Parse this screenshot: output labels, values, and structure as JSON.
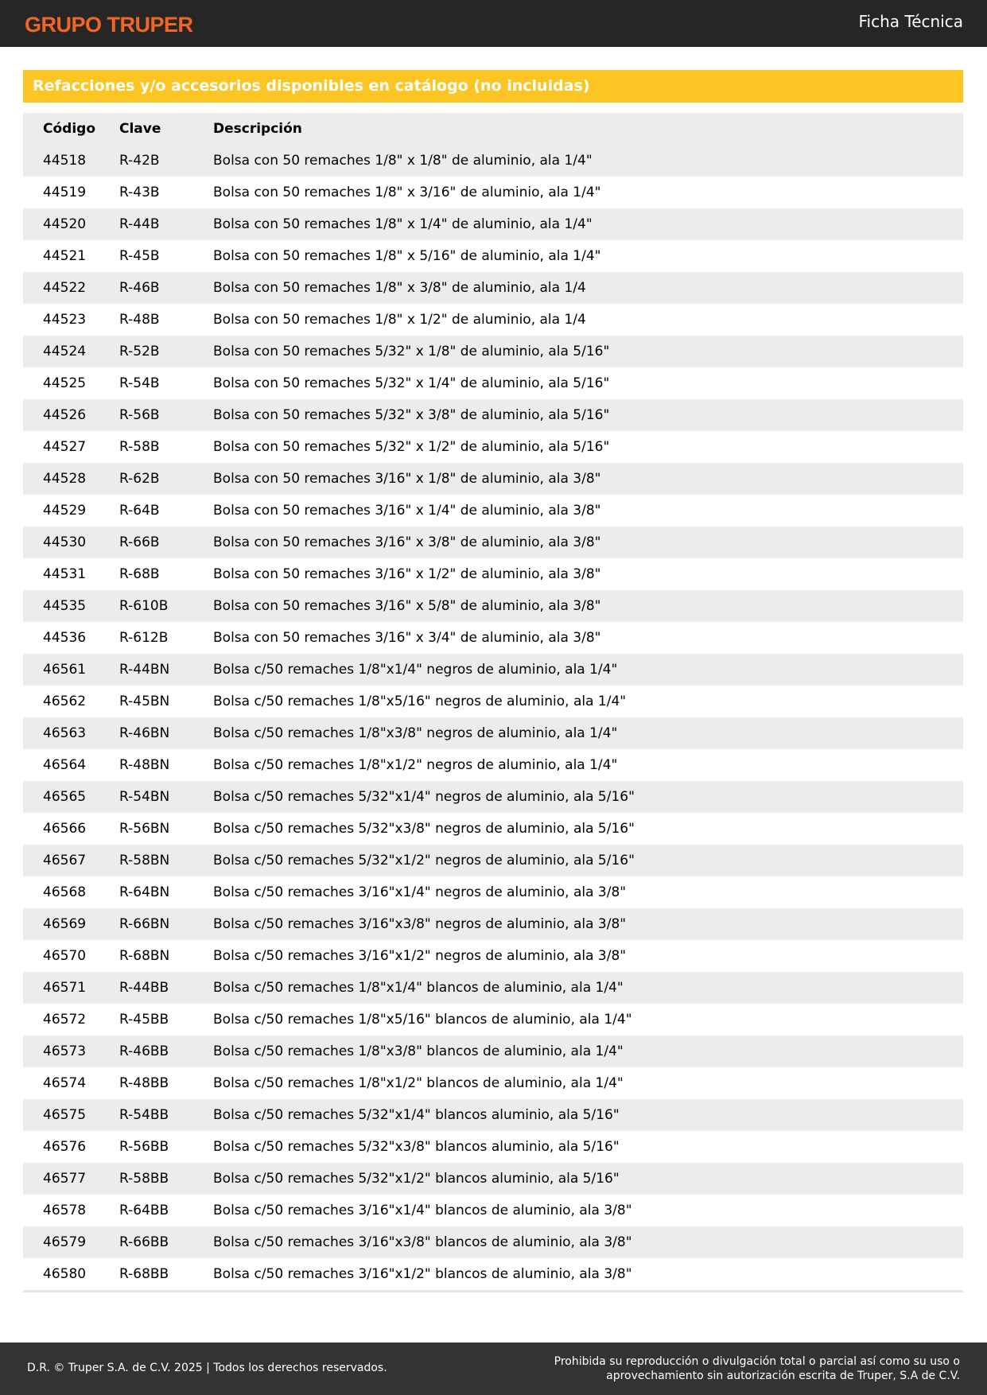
{
  "header": {
    "logo": "GRUPO TRUPER",
    "doc_type": "Ficha Técnica"
  },
  "section_title": "Refacciones y/o accesorios disponibles en catálogo (no incluidas)",
  "table": {
    "columns": [
      "Código",
      "Clave",
      "Descripción"
    ],
    "rows": [
      [
        "44518",
        "R-42B",
        "Bolsa con 50 remaches 1/8\" x 1/8\" de aluminio, ala 1/4\""
      ],
      [
        "44519",
        "R-43B",
        "Bolsa con 50 remaches 1/8\" x 3/16\" de aluminio, ala 1/4\""
      ],
      [
        "44520",
        "R-44B",
        "Bolsa con 50 remaches 1/8\" x 1/4\" de aluminio, ala 1/4\""
      ],
      [
        "44521",
        "R-45B",
        "Bolsa con 50 remaches 1/8\" x 5/16\" de aluminio, ala 1/4\""
      ],
      [
        "44522",
        "R-46B",
        "Bolsa con 50 remaches 1/8\" x 3/8\" de aluminio, ala 1/4"
      ],
      [
        "44523",
        "R-48B",
        "Bolsa con 50 remaches 1/8\" x 1/2\" de aluminio, ala 1/4"
      ],
      [
        "44524",
        "R-52B",
        "Bolsa con 50 remaches 5/32\" x 1/8\" de aluminio, ala 5/16\""
      ],
      [
        "44525",
        "R-54B",
        "Bolsa con 50 remaches 5/32\" x 1/4\" de aluminio, ala 5/16\""
      ],
      [
        "44526",
        "R-56B",
        "Bolsa con 50 remaches 5/32\" x 3/8\" de aluminio, ala 5/16\""
      ],
      [
        "44527",
        "R-58B",
        "Bolsa con 50 remaches 5/32\" x 1/2\" de aluminio, ala 5/16\""
      ],
      [
        "44528",
        "R-62B",
        "Bolsa con 50 remaches 3/16\" x 1/8\" de aluminio, ala 3/8\""
      ],
      [
        "44529",
        "R-64B",
        "Bolsa con 50 remaches 3/16\" x 1/4\" de aluminio, ala 3/8\""
      ],
      [
        "44530",
        "R-66B",
        "Bolsa con 50 remaches 3/16\" x 3/8\" de aluminio, ala 3/8\""
      ],
      [
        "44531",
        "R-68B",
        "Bolsa con 50 remaches 3/16\" x 1/2\" de aluminio, ala 3/8\""
      ],
      [
        "44535",
        "R-610B",
        "Bolsa con 50 remaches 3/16\" x 5/8\" de aluminio, ala 3/8\""
      ],
      [
        "44536",
        "R-612B",
        "Bolsa con 50 remaches 3/16\" x 3/4\" de aluminio, ala 3/8\""
      ],
      [
        "46561",
        "R-44BN",
        "Bolsa c/50 remaches 1/8\"x1/4\" negros de aluminio, ala 1/4\""
      ],
      [
        "46562",
        "R-45BN",
        "Bolsa c/50 remaches 1/8\"x5/16\" negros de aluminio, ala 1/4\""
      ],
      [
        "46563",
        "R-46BN",
        "Bolsa c/50 remaches 1/8\"x3/8\" negros de aluminio, ala 1/4\""
      ],
      [
        "46564",
        "R-48BN",
        "Bolsa c/50 remaches 1/8\"x1/2\" negros de aluminio, ala 1/4\""
      ],
      [
        "46565",
        "R-54BN",
        "Bolsa c/50 remaches 5/32\"x1/4\" negros de aluminio, ala 5/16\""
      ],
      [
        "46566",
        "R-56BN",
        "Bolsa c/50 remaches 5/32\"x3/8\" negros de aluminio, ala 5/16\""
      ],
      [
        "46567",
        "R-58BN",
        "Bolsa c/50 remaches 5/32\"x1/2\" negros de aluminio, ala 5/16\""
      ],
      [
        "46568",
        "R-64BN",
        "Bolsa c/50 remaches 3/16\"x1/4\" negros de aluminio, ala 3/8\""
      ],
      [
        "46569",
        "R-66BN",
        "Bolsa c/50 remaches 3/16\"x3/8\" negros de aluminio, ala 3/8\""
      ],
      [
        "46570",
        "R-68BN",
        "Bolsa c/50 remaches 3/16\"x1/2\" negros de aluminio, ala 3/8\""
      ],
      [
        "46571",
        "R-44BB",
        "Bolsa c/50 remaches 1/8\"x1/4\" blancos de aluminio, ala 1/4\""
      ],
      [
        "46572",
        "R-45BB",
        "Bolsa c/50 remaches 1/8\"x5/16\" blancos de aluminio, ala 1/4\""
      ],
      [
        "46573",
        "R-46BB",
        "Bolsa c/50 remaches 1/8\"x3/8\" blancos de aluminio, ala 1/4\""
      ],
      [
        "46574",
        "R-48BB",
        "Bolsa c/50 remaches 1/8\"x1/2\" blancos de aluminio, ala 1/4\""
      ],
      [
        "46575",
        "R-54BB",
        "Bolsa c/50 remaches 5/32\"x1/4\" blancos aluminio, ala 5/16\""
      ],
      [
        "46576",
        "R-56BB",
        "Bolsa c/50 remaches 5/32\"x3/8\" blancos aluminio, ala 5/16\""
      ],
      [
        "46577",
        "R-58BB",
        "Bolsa c/50 remaches 5/32\"x1/2\" blancos aluminio, ala 5/16\""
      ],
      [
        "46578",
        "R-64BB",
        "Bolsa c/50 remaches 3/16\"x1/4\" blancos de aluminio, ala 3/8\""
      ],
      [
        "46579",
        "R-66BB",
        "Bolsa c/50 remaches 3/16\"x3/8\" blancos de aluminio, ala 3/8\""
      ],
      [
        "46580",
        "R-68BB",
        "Bolsa c/50 remaches 3/16\"x1/2\" blancos de aluminio, ala 3/8\""
      ]
    ]
  },
  "footer": {
    "left": "D.R. © Truper S.A. de C.V. 2025 | Todos los derechos reservados.",
    "right_line1": "Prohibida su reproducción o divulgación total o parcial así como su uso o",
    "right_line2": "aprovechamiento sin autorización escrita de Truper, S.A de C.V."
  },
  "colors": {
    "header_bg": "#262626",
    "logo": "#f26522",
    "section_bg": "#fcc524",
    "stripe": "#ececec",
    "footer_bg": "#333333"
  }
}
